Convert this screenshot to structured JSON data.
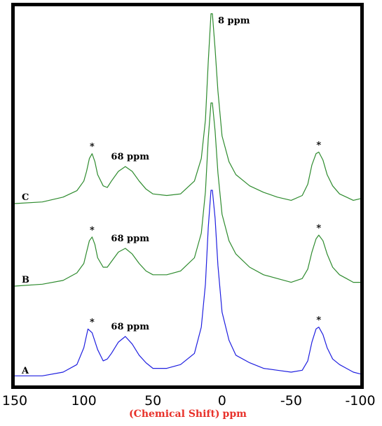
{
  "chart_data": {
    "type": "line",
    "title": "",
    "xlabel": {
      "bracketed": "(Chemical Shift)",
      "unit": "ppm"
    },
    "ylabel": "",
    "xlim": [
      150,
      -100
    ],
    "x_axis_reversed": true,
    "grid": false,
    "legend": "none",
    "x_ticks": [
      {
        "value": 150,
        "label": "150"
      },
      {
        "value": 100,
        "label": "100"
      },
      {
        "value": 50,
        "label": "50"
      },
      {
        "value": 0,
        "label": "0"
      },
      {
        "value": -50,
        "label": "-50"
      },
      {
        "value": -100,
        "label": "-100"
      }
    ],
    "series": [
      {
        "label": "A",
        "color": "#1f1fe0",
        "baseline": 0,
        "x": [
          150,
          130,
          115,
          105,
          100,
          97,
          94,
          90,
          86,
          83,
          80,
          75,
          70,
          65,
          60,
          55,
          50,
          40,
          30,
          20,
          15,
          12,
          10,
          8,
          7,
          5,
          3,
          0,
          -5,
          -10,
          -20,
          -30,
          -40,
          -50,
          -58,
          -62,
          -65,
          -68,
          -70,
          -73,
          -76,
          -80,
          -85,
          -90,
          -95,
          -100
        ],
        "y": [
          0.01,
          0.01,
          0.03,
          0.07,
          0.16,
          0.26,
          0.24,
          0.15,
          0.09,
          0.1,
          0.13,
          0.19,
          0.22,
          0.18,
          0.12,
          0.08,
          0.05,
          0.05,
          0.07,
          0.13,
          0.27,
          0.5,
          0.8,
          1.0,
          1.0,
          0.85,
          0.6,
          0.35,
          0.2,
          0.12,
          0.08,
          0.05,
          0.04,
          0.03,
          0.04,
          0.09,
          0.19,
          0.26,
          0.27,
          0.23,
          0.16,
          0.1,
          0.07,
          0.05,
          0.03,
          0.02
        ]
      },
      {
        "label": "B",
        "color": "#2e8b2e",
        "baseline": 1,
        "x": [
          150,
          130,
          115,
          105,
          100,
          98,
          96,
          94,
          92,
          90,
          86,
          83,
          80,
          75,
          70,
          65,
          60,
          55,
          50,
          40,
          30,
          20,
          15,
          12,
          10,
          8,
          7,
          5,
          3,
          0,
          -5,
          -10,
          -20,
          -30,
          -40,
          -50,
          -58,
          -62,
          -65,
          -68,
          -70,
          -73,
          -76,
          -80,
          -85,
          -90,
          -95,
          -100
        ],
        "y": [
          0.0,
          0.01,
          0.03,
          0.07,
          0.12,
          0.18,
          0.24,
          0.26,
          0.22,
          0.15,
          0.1,
          0.1,
          0.13,
          0.18,
          0.2,
          0.17,
          0.12,
          0.08,
          0.06,
          0.06,
          0.08,
          0.15,
          0.28,
          0.5,
          0.78,
          0.97,
          0.97,
          0.82,
          0.6,
          0.38,
          0.24,
          0.17,
          0.1,
          0.06,
          0.04,
          0.02,
          0.04,
          0.09,
          0.18,
          0.25,
          0.27,
          0.24,
          0.17,
          0.1,
          0.06,
          0.04,
          0.02,
          0.02
        ]
      },
      {
        "label": "C",
        "color": "#2e8b2e",
        "baseline": 2,
        "x": [
          150,
          130,
          115,
          105,
          100,
          98,
          96,
          94,
          92,
          90,
          86,
          83,
          80,
          75,
          70,
          65,
          60,
          55,
          50,
          40,
          30,
          20,
          15,
          12,
          10,
          8,
          7,
          5,
          3,
          0,
          -5,
          -10,
          -20,
          -30,
          -40,
          -50,
          -58,
          -62,
          -65,
          -68,
          -70,
          -73,
          -76,
          -80,
          -85,
          -90,
          -95,
          -100
        ],
        "y": [
          0.0,
          0.01,
          0.04,
          0.08,
          0.14,
          0.2,
          0.28,
          0.31,
          0.26,
          0.18,
          0.11,
          0.1,
          0.14,
          0.2,
          0.23,
          0.2,
          0.14,
          0.09,
          0.06,
          0.05,
          0.06,
          0.14,
          0.28,
          0.52,
          0.88,
          1.18,
          1.18,
          0.96,
          0.7,
          0.42,
          0.26,
          0.18,
          0.11,
          0.07,
          0.04,
          0.02,
          0.05,
          0.12,
          0.24,
          0.31,
          0.32,
          0.27,
          0.18,
          0.11,
          0.06,
          0.04,
          0.02,
          0.03
        ]
      }
    ],
    "annotations": [
      {
        "text": "8 ppm",
        "series": "C",
        "x": 7,
        "y": 1.18
      },
      {
        "text": "68 ppm",
        "series": "C",
        "x": 68,
        "y": 0.23
      },
      {
        "text": "68 ppm",
        "series": "B",
        "x": 68,
        "y": 0.2
      },
      {
        "text": "68 ppm",
        "series": "A",
        "x": 68,
        "y": 0.22
      },
      {
        "text": "*",
        "series": "C",
        "x": 94,
        "y": 0.31
      },
      {
        "text": "*",
        "series": "C",
        "x": -70,
        "y": 0.32
      },
      {
        "text": "*",
        "series": "B",
        "x": 94,
        "y": 0.26
      },
      {
        "text": "*",
        "series": "B",
        "x": -70,
        "y": 0.27
      },
      {
        "text": "*",
        "series": "A",
        "x": 94,
        "y": 0.26
      },
      {
        "text": "*",
        "series": "A",
        "x": -70,
        "y": 0.27
      }
    ]
  }
}
